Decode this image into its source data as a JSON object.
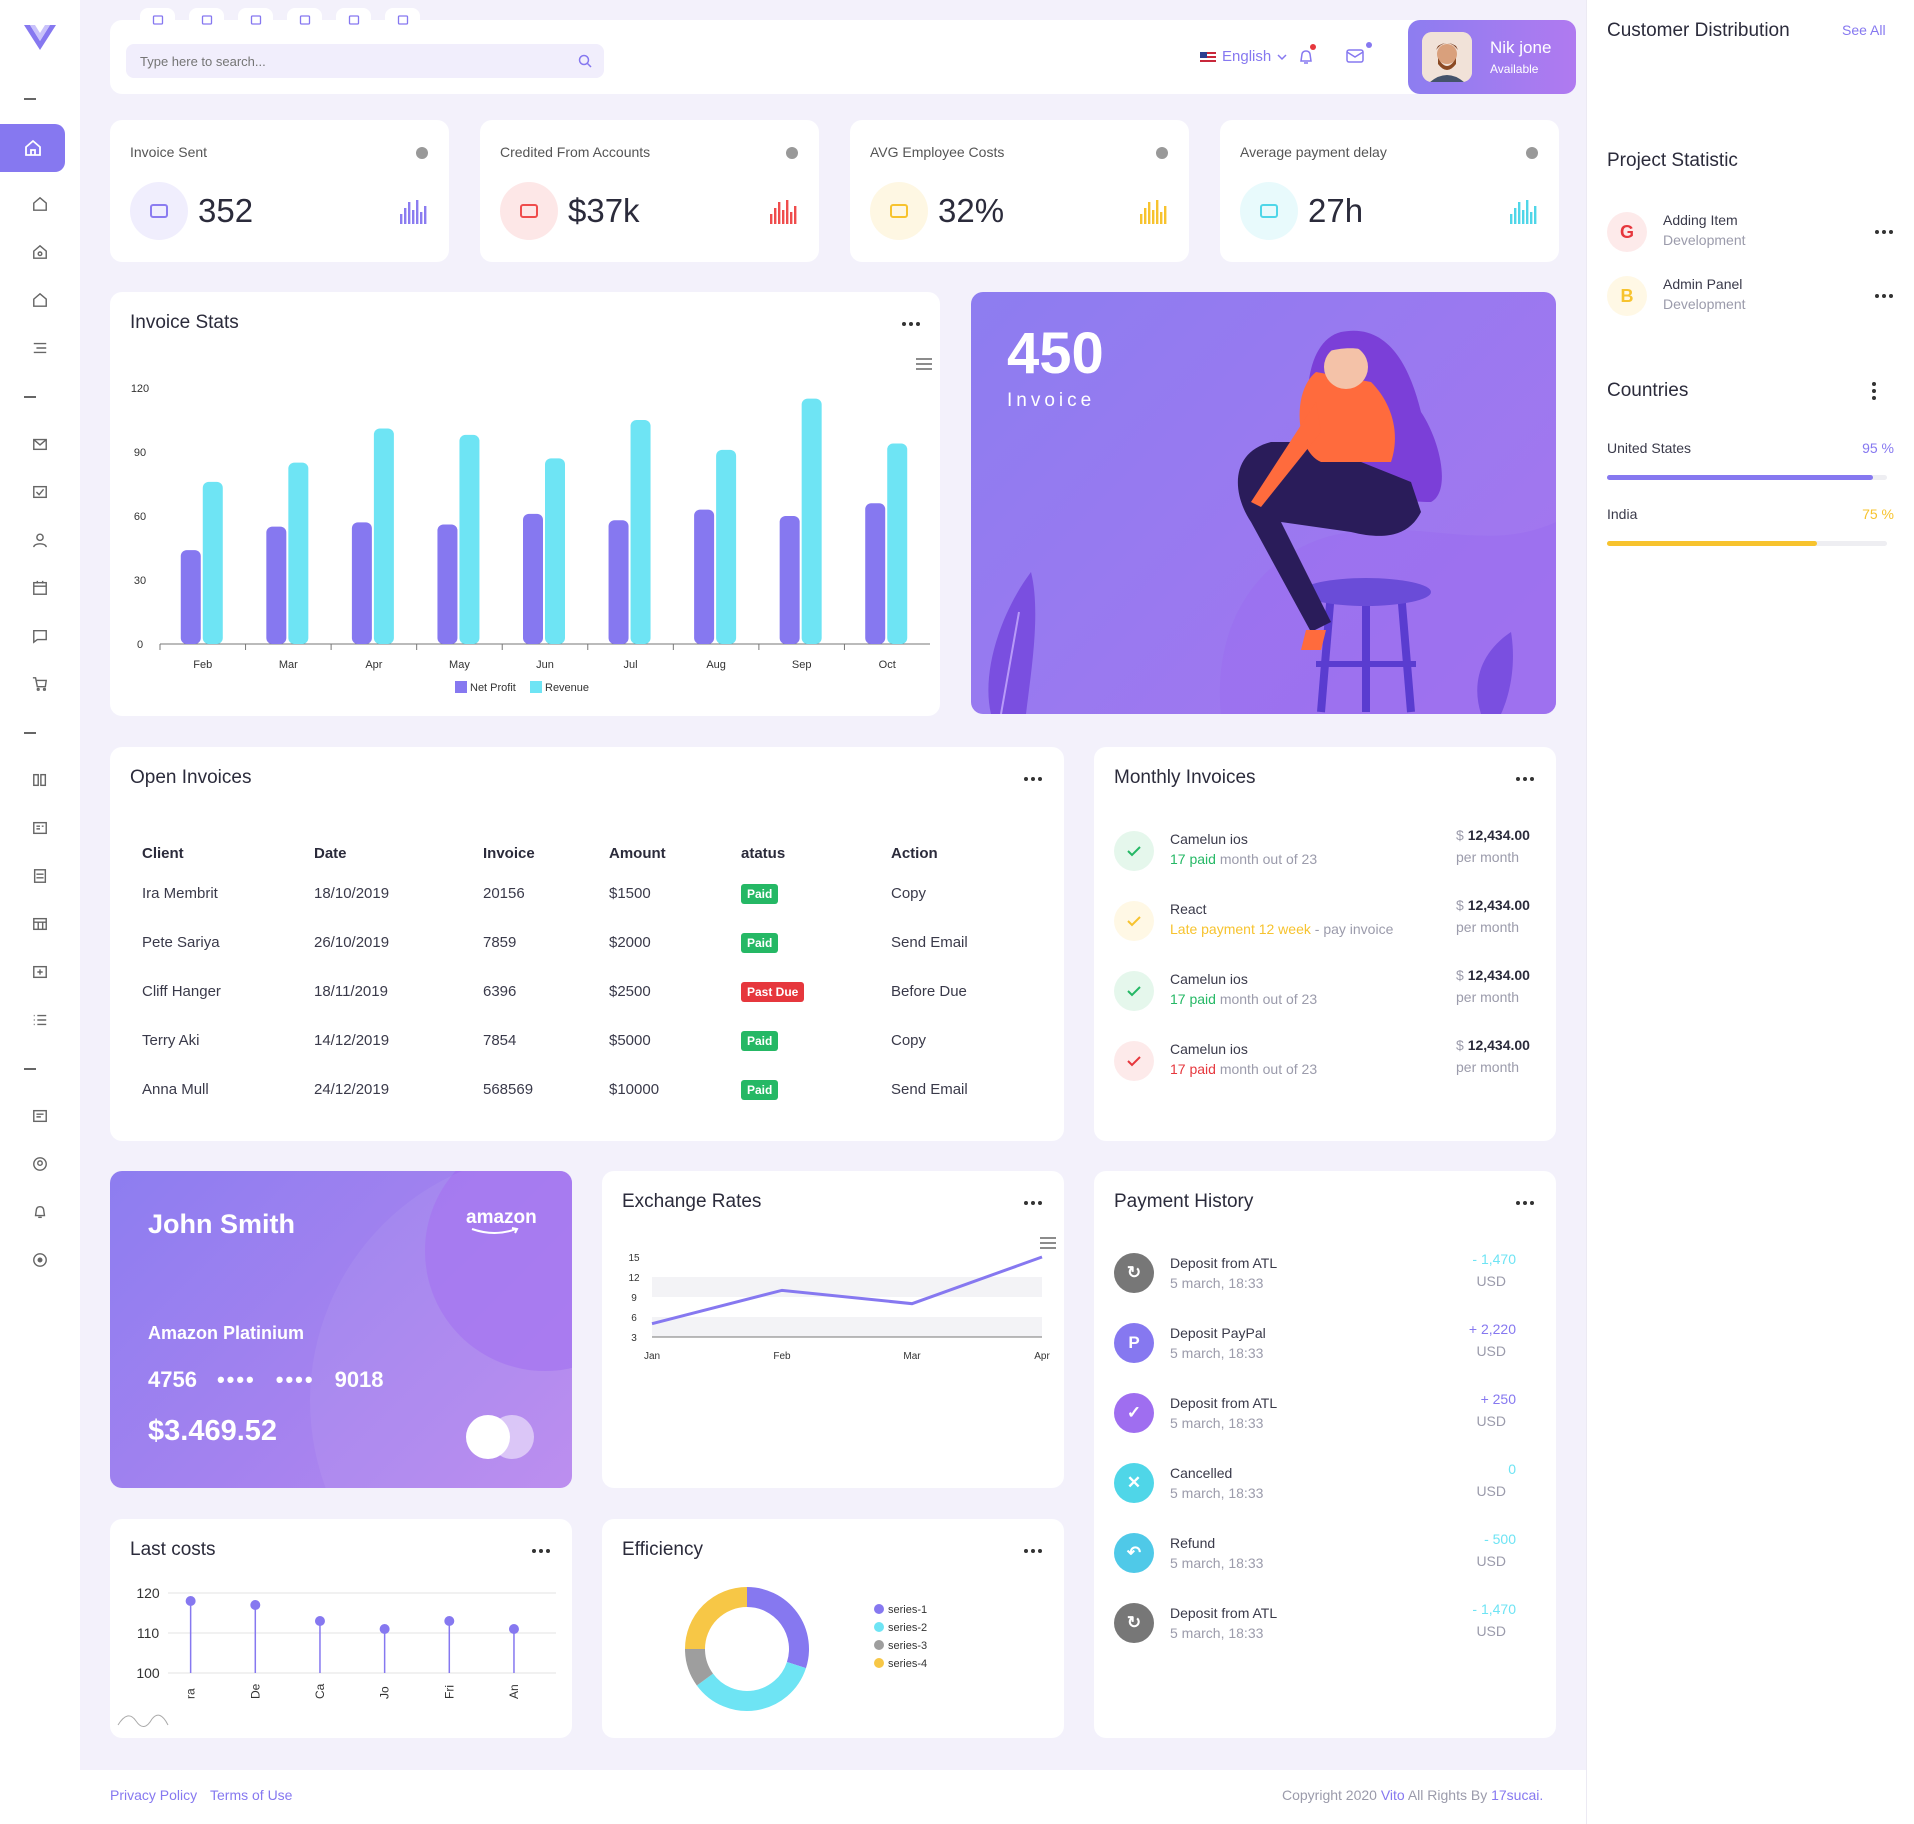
{
  "header": {
    "search_placeholder": "Type here to search...",
    "language": "English",
    "user_name": "Nik jone",
    "user_status": "Available",
    "tab_icons": [
      "home-icon",
      "chat-icon",
      "doc-icon",
      "message-icon",
      "comment-icon",
      "mail-icon"
    ]
  },
  "stats": [
    {
      "title": "Invoice Sent",
      "value": "352",
      "color": "#8b7cf0"
    },
    {
      "title": "Credited From Accounts",
      "value": "$37k",
      "color": "#ef4c4c"
    },
    {
      "title": "AVG Employee Costs",
      "value": "32%",
      "color": "#f7c32e"
    },
    {
      "title": "Average payment delay",
      "value": "27h",
      "color": "#4fd6e8"
    }
  ],
  "invoice_stats": {
    "title": "Invoice Stats",
    "chart_data": {
      "type": "bar",
      "categories": [
        "Feb",
        "Mar",
        "Apr",
        "May",
        "Jun",
        "Jul",
        "Aug",
        "Sep",
        "Oct"
      ],
      "series": [
        {
          "name": "Net Profit",
          "values": [
            44,
            55,
            57,
            56,
            61,
            58,
            63,
            60,
            66
          ]
        },
        {
          "name": "Revenue",
          "values": [
            76,
            85,
            101,
            98,
            87,
            105,
            91,
            115,
            94
          ]
        }
      ],
      "y_ticks": [
        "0",
        "30",
        "60",
        "90",
        "120"
      ],
      "ylim": [
        0,
        120
      ],
      "colors": [
        "#8678f0",
        "#6ee4f4"
      ],
      "legend": "bottom"
    }
  },
  "promo": {
    "number": "450",
    "label": "Invoice"
  },
  "open_invoices": {
    "title": "Open Invoices",
    "headers": [
      "Client",
      "Date",
      "Invoice",
      "Amount",
      "atatus",
      "Action"
    ],
    "rows": [
      {
        "client": "Ira Membrit",
        "date": "18/10/2019",
        "invoice": "20156",
        "amount": "$1500",
        "status": "Paid",
        "status_color": "#25b865",
        "action": "Copy"
      },
      {
        "client": "Pete Sariya",
        "date": "26/10/2019",
        "invoice": "7859",
        "amount": "$2000",
        "status": "Paid",
        "status_color": "#25b865",
        "action": "Send Email"
      },
      {
        "client": "Cliff Hanger",
        "date": "18/11/2019",
        "invoice": "6396",
        "amount": "$2500",
        "status": "Past Due",
        "status_color": "#e6373d",
        "action": "Before Due"
      },
      {
        "client": "Terry Aki",
        "date": "14/12/2019",
        "invoice": "7854",
        "amount": "$5000",
        "status": "Paid",
        "status_color": "#25b865",
        "action": "Copy"
      },
      {
        "client": "Anna Mull",
        "date": "24/12/2019",
        "invoice": "568569",
        "amount": "$10000",
        "status": "Paid",
        "status_color": "#25b865",
        "action": "Send Email"
      }
    ]
  },
  "monthly_invoices": {
    "title": "Monthly Invoices",
    "items": [
      {
        "name": "Camelun ios",
        "hl": "17 paid",
        "rest": " month out of 23",
        "hl_color": "#25b865",
        "amount": "12,434.00",
        "period": "per month",
        "icon": "check",
        "icon_color": "#25b865",
        "icon_bg": "#e5f7ec"
      },
      {
        "name": "React",
        "hl": "Late payment 12 week",
        "rest": " - pay invoice",
        "hl_color": "#f7c32e",
        "amount": "12,434.00",
        "period": "per month",
        "icon": "check",
        "icon_color": "#f7c32e",
        "icon_bg": "#fff8e5"
      },
      {
        "name": "Camelun ios",
        "hl": "17 paid",
        "rest": " month out of 23",
        "hl_color": "#25b865",
        "amount": "12,434.00",
        "period": "per month",
        "icon": "check",
        "icon_color": "#25b865",
        "icon_bg": "#e5f7ec"
      },
      {
        "name": "Camelun ios",
        "hl": "17 paid",
        "rest": " month out of 23",
        "hl_color": "#e6373d",
        "amount": "12,434.00",
        "period": "per month",
        "icon": "check",
        "icon_color": "#e6373d",
        "icon_bg": "#fdeaea"
      }
    ]
  },
  "credit_card": {
    "holder": "John Smith",
    "brand": "amazon",
    "plan": "Amazon Platinium",
    "first": "4756",
    "masked1": "••••",
    "masked2": "••••",
    "last": "9018",
    "balance": "$3.469.52"
  },
  "exchange_rates": {
    "title": "Exchange Rates",
    "chart_data": {
      "type": "line",
      "categories": [
        "Jan",
        "Feb",
        "Mar",
        "Apr"
      ],
      "series": [
        {
          "values": [
            5,
            10,
            8,
            15
          ]
        }
      ],
      "y_ticks": [
        "3",
        "6",
        "9",
        "12",
        "15"
      ],
      "ylim": [
        3,
        15
      ],
      "color": "#8678f0"
    }
  },
  "payment_history": {
    "title": "Payment History",
    "items": [
      {
        "name": "Deposit from ATL",
        "time": "5 march, 18:33",
        "amount": "- 1,470",
        "currency": "USD",
        "amount_color": "#6ee4f4",
        "icon_bg": "#777777",
        "icon": "refresh-icon",
        "glyph": "↻"
      },
      {
        "name": "Deposit PayPal",
        "time": "5 march, 18:33",
        "amount": "+ 2,220",
        "currency": "USD",
        "amount_color": "#8678f0",
        "icon_bg": "#8678f0",
        "icon": "paypal-icon",
        "glyph": "P"
      },
      {
        "name": "Deposit from ATL",
        "time": "5 march, 18:33",
        "amount": "+ 250",
        "currency": "USD",
        "amount_color": "#8678f0",
        "icon_bg": "#9f6ef0",
        "icon": "check-icon",
        "glyph": "✓"
      },
      {
        "name": "Cancelled",
        "time": "5 march, 18:33",
        "amount": "0",
        "currency": "USD",
        "amount_color": "#6ee4f4",
        "icon_bg": "#4fd6e8",
        "icon": "close-icon",
        "glyph": "✕"
      },
      {
        "name": "Refund",
        "time": "5 march, 18:33",
        "amount": "- 500",
        "currency": "USD",
        "amount_color": "#6ee4f4",
        "icon_bg": "#4fc9e8",
        "icon": "undo-icon",
        "glyph": "↶"
      },
      {
        "name": "Deposit from ATL",
        "time": "5 march, 18:33",
        "amount": "- 1,470",
        "currency": "USD",
        "amount_color": "#6ee4f4",
        "icon_bg": "#777777",
        "icon": "refresh-icon",
        "glyph": "↻"
      }
    ]
  },
  "last_costs": {
    "title": "Last costs",
    "chart_data": {
      "type": "scatter",
      "categories": [
        "Ira",
        "Des",
        "Cal",
        "Jos",
        "Fri",
        "Ann"
      ],
      "display_labels": [
        "ra",
        "De",
        "Ca",
        "Jo",
        "Fri",
        "An"
      ],
      "values": [
        118,
        117,
        113,
        111,
        113,
        111
      ],
      "y_ticks": [
        "100",
        "110",
        "120"
      ],
      "ylim": [
        100,
        120
      ],
      "color": "#8678f0"
    }
  },
  "efficiency": {
    "title": "Efficiency",
    "chart_data": {
      "type": "pie",
      "donut": true,
      "series": [
        {
          "name": "series-1",
          "value": 30,
          "color": "#8678f0"
        },
        {
          "name": "series-2",
          "value": 35,
          "color": "#6ee4f4"
        },
        {
          "name": "series-3",
          "value": 10,
          "color": "#9e9e9e"
        },
        {
          "name": "series-4",
          "value": 25,
          "color": "#f7c746"
        }
      ]
    }
  },
  "right": {
    "customer_title": "Customer Distribution",
    "see_all": "See All",
    "project_title": "Project Statistic",
    "projects": [
      {
        "letter": "G",
        "name": "Adding Item",
        "sub": "Development",
        "color": "#e6373d",
        "bg": "#fdeaea"
      },
      {
        "letter": "B",
        "name": "Admin Panel",
        "sub": "Development",
        "color": "#f7c32e",
        "bg": "#fff8e5"
      }
    ],
    "countries_title": "Countries",
    "countries": [
      {
        "name": "United States",
        "percent": "95 %",
        "value": 95,
        "color": "#8678f0"
      },
      {
        "name": "India",
        "percent": "75 %",
        "value": 75,
        "color": "#f7c32e"
      }
    ]
  },
  "footer": {
    "privacy": "Privacy Policy",
    "terms": "Terms of Use",
    "copy_pre": "Copyright 2020 ",
    "brand": "Vito",
    "copy_mid": " All Rights By ",
    "author": "17sucai."
  },
  "colors": {
    "accent": "#8678f0",
    "cyan": "#6ee4f4",
    "bg": "#f3f1fb"
  }
}
